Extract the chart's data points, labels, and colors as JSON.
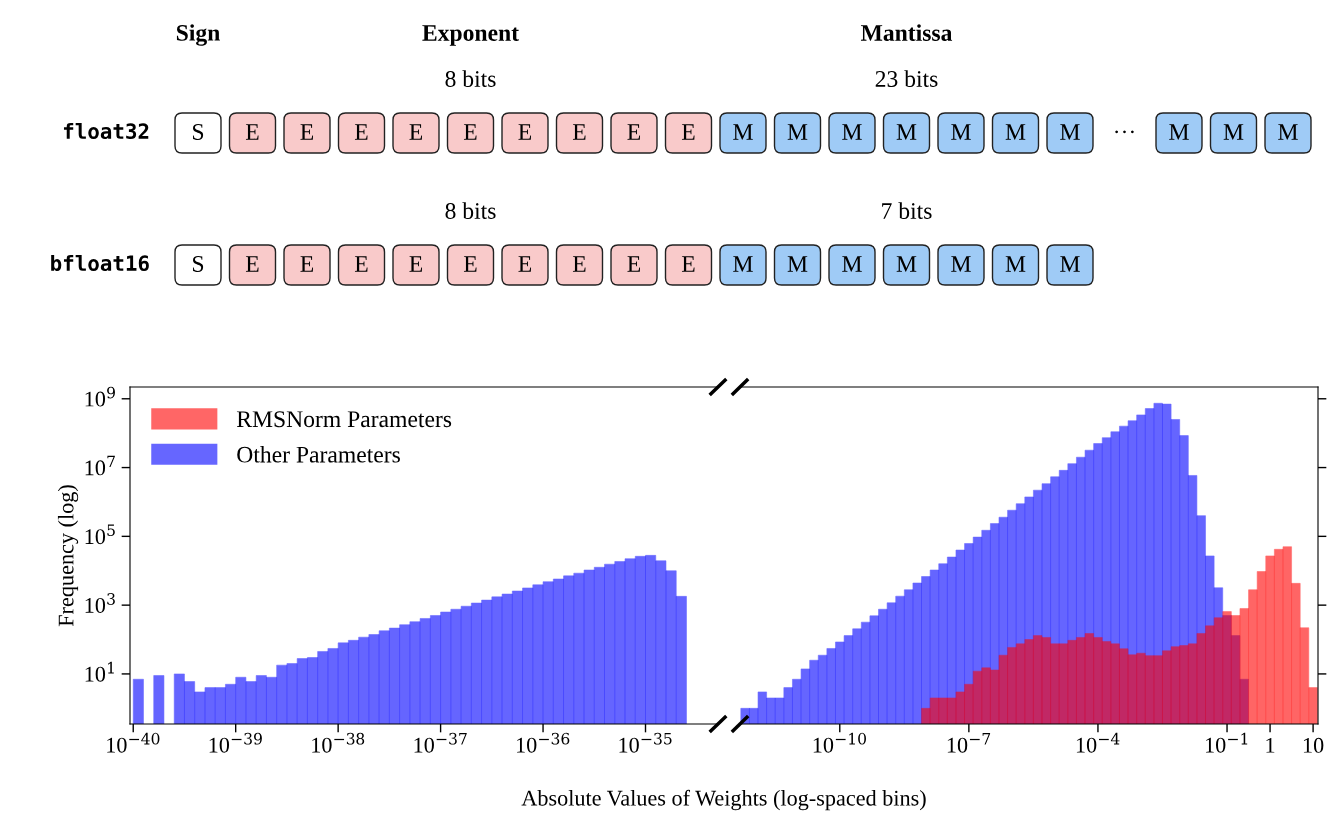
{
  "chart_data": [
    {
      "type": "other",
      "categories": [
        "Sign",
        "Exponent",
        "Mantissa"
      ],
      "y_categories": [
        "float32",
        "bfloat16"
      ],
      "cell_labels": [
        [
          "S",
          "E",
          "E",
          "E",
          "E",
          "E",
          "E",
          "E",
          "E",
          "E",
          "M",
          "M",
          "M",
          "M",
          "M",
          "M",
          "M",
          "···",
          "M",
          "M",
          "M"
        ],
        [
          "S",
          "E",
          "E",
          "E",
          "E",
          "E",
          "E",
          "E",
          "E",
          "E",
          "M",
          "M",
          "M",
          "M",
          "M",
          "M",
          "M"
        ]
      ],
      "colors": [
        [
          "#ffffff",
          "#f9caca",
          "#f9caca",
          "#f9caca",
          "#f9caca",
          "#f9caca",
          "#f9caca",
          "#f9caca",
          "#f9caca",
          "#f9caca",
          "#9fcbf6",
          "#9fcbf6",
          "#9fcbf6",
          "#9fcbf6",
          "#9fcbf6",
          "#9fcbf6",
          "#9fcbf6",
          null,
          "#9fcbf6",
          "#9fcbf6",
          "#9fcbf6"
        ],
        [
          "#ffffff",
          "#f9caca",
          "#f9caca",
          "#f9caca",
          "#f9caca",
          "#f9caca",
          "#f9caca",
          "#f9caca",
          "#f9caca",
          "#f9caca",
          "#9fcbf6",
          "#9fcbf6",
          "#9fcbf6",
          "#9fcbf6",
          "#9fcbf6",
          "#9fcbf6",
          "#9fcbf6"
        ]
      ],
      "annotations": [
        "8 bits",
        "23 bits",
        "8 bits",
        "7 bits"
      ]
    },
    {
      "type": "histogram",
      "log": "xy",
      "ylabel": "Frequency (log)",
      "xlabel": "Absolute Values of Weights (log-spaced bins)",
      "xlim": [
        9.3e-41,
        5.1e-35
      ],
      "ylim": [
        0.35,
        2200000000.0
      ],
      "xticks": [
        {
          "value": 1e-40,
          "label": "10$^{−40}$"
        },
        {
          "value": 1e-39,
          "label": "10$^{−39}$"
        },
        {
          "value": 1e-38,
          "label": "10$^{−38}$"
        },
        {
          "value": 1e-37,
          "label": "10$^{−37}$"
        },
        {
          "value": 1e-36,
          "label": "10$^{−36}$"
        },
        {
          "value": 1e-35,
          "label": "10$^{−35}$"
        }
      ],
      "yticks": [
        {
          "value": 10,
          "label": "10$^{1}$"
        },
        {
          "value": 1000,
          "label": "10$^{3}$"
        },
        {
          "value": 100000,
          "label": "10$^{5}$"
        },
        {
          "value": 10000000,
          "label": "10$^{7}$"
        },
        {
          "value": 1000000000,
          "label": "10$^{9}$"
        }
      ],
      "bins": [
        1e-40,
        1.259e-40,
        1.585e-40,
        1.995e-40,
        2.512e-40,
        3.162e-40,
        3.981e-40,
        5.012e-40,
        6.31e-40,
        7.943e-40,
        1e-39,
        1.259e-39,
        1.585e-39,
        1.995e-39,
        2.512e-39,
        3.162e-39,
        3.981e-39,
        5.012e-39,
        6.31e-39,
        7.943e-39,
        1e-38,
        1.259e-38,
        1.585e-38,
        1.995e-38,
        2.512e-38,
        3.162e-38,
        3.981e-38,
        5.012e-38,
        6.31e-38,
        7.943e-38,
        1e-37,
        1.259e-37,
        1.585e-37,
        1.995e-37,
        2.512e-37,
        3.162e-37,
        3.981e-37,
        5.012e-37,
        6.31e-37,
        7.943e-37,
        1e-36,
        1.259e-36,
        1.585e-36,
        1.995e-36,
        2.512e-36,
        3.162e-36,
        3.981e-36,
        5.012e-36,
        6.31e-36,
        7.943e-36,
        1e-35,
        1.259e-35,
        1.585e-35,
        1.995e-35,
        2.512e-35
      ],
      "series": [
        {
          "color": "#6666ff",
          "values": [
            7,
            null,
            9,
            null,
            10,
            6,
            3,
            4,
            4,
            5,
            8,
            6,
            9,
            8,
            18,
            20,
            28,
            30,
            45,
            55,
            80,
            95,
            117,
            140,
            180,
            215,
            270,
            330,
            410,
            500,
            630,
            760,
            930,
            1150,
            1400,
            1740,
            2100,
            2570,
            3160,
            3900,
            4800,
            5750,
            7100,
            8500,
            10500,
            12600,
            15500,
            18600,
            22400,
            26300,
            28000,
            19500,
            10000,
            1800
          ]
        }
      ]
    },
    {
      "type": "histogram",
      "log": "xy",
      "tick_labels": "x",
      "legend": "top left",
      "xlim": [
        4.8e-13,
        13
      ],
      "ylim": [
        0.35,
        2200000000.0
      ],
      "xticks": [
        {
          "value": 1e-10,
          "label": "10$^{−10}$"
        },
        {
          "value": 1e-07,
          "label": "10$^{−7}$"
        },
        {
          "value": 0.0001,
          "label": "10$^{−4}$"
        },
        {
          "value": 0.1,
          "label": "10$^{−1}$"
        },
        1,
        10
      ],
      "yticks": [
        {
          "value": 10,
          "label": null
        },
        {
          "value": 1000,
          "label": null
        },
        {
          "value": 100000,
          "label": null
        },
        {
          "value": 10000000,
          "label": null
        },
        {
          "value": 1000000000,
          "label": null
        }
      ],
      "bins": [
        5.012e-13,
        7.943e-13,
        1.259e-12,
        1.995e-12,
        3.162e-12,
        5.012e-12,
        7.943e-12,
        1.259e-11,
        1.995e-11,
        3.162e-11,
        5.012e-11,
        7.943e-11,
        1.259e-10,
        1.995e-10,
        3.162e-10,
        5.012e-10,
        7.943e-10,
        1.259e-09,
        1.995e-09,
        3.162e-09,
        5.012e-09,
        7.943e-09,
        1.259e-08,
        1.995e-08,
        3.162e-08,
        5.012e-08,
        7.943e-08,
        1.259e-07,
        1.995e-07,
        3.162e-07,
        5.012e-07,
        7.943e-07,
        1.259e-06,
        1.995e-06,
        3.162e-06,
        5.012e-06,
        7.943e-06,
        1.259e-05,
        1.995e-05,
        3.162e-05,
        5.012e-05,
        7.943e-05,
        0.0001259,
        0.0001995,
        0.0003162,
        0.0005012,
        0.0007943,
        0.001259,
        0.001995,
        0.003162,
        0.005012,
        0.007943,
        0.01259,
        0.01995,
        0.03162,
        0.05012,
        0.07943,
        0.1259,
        0.1995,
        0.3162,
        0.5012,
        0.7943,
        1.259,
        1.995,
        3.162,
        5.012,
        7.943,
        12.59
      ],
      "series": [
        {
          "name": "Other Parameters",
          "color": "#6666ff",
          "values": [
            1,
            1,
            3,
            2,
            2,
            4,
            7,
            14,
            25,
            35,
            55,
            85,
            130,
            205,
            320,
            490,
            760,
            1170,
            1820,
            2800,
            4400,
            6800,
            10500,
            16000,
            25000,
            40000,
            62000,
            95000,
            150000,
            235000,
            360000,
            575000,
            890000,
            1400000,
            2200000,
            3400000,
            5400000,
            8300000,
            13000000,
            20000000,
            32000000,
            50000000,
            74000000,
            110000000,
            160000000,
            230000000,
            340000000,
            520000000,
            740000000,
            700000000,
            250000000,
            85000000,
            5900000,
            400000,
            27000,
            3200,
            500,
            130,
            7,
            null,
            null,
            null,
            null,
            null,
            null,
            null,
            null
          ]
        },
        {
          "name": "RMSNorm Parameters",
          "color": "#ff6666",
          "values": [
            null,
            null,
            null,
            null,
            null,
            null,
            null,
            null,
            null,
            null,
            null,
            null,
            null,
            null,
            null,
            null,
            null,
            null,
            null,
            null,
            null,
            1,
            2,
            2,
            2,
            3,
            5,
            12,
            15,
            13,
            35,
            59,
            75,
            100,
            130,
            115,
            75,
            75,
            95,
            115,
            150,
            115,
            88,
            75,
            54,
            36,
            40,
            34,
            34,
            47,
            62,
            67,
            75,
            150,
            250,
            430,
            650,
            500,
            800,
            2800,
            9500,
            27000,
            42000,
            50000,
            4300,
            220,
            4
          ]
        }
      ]
    }
  ]
}
